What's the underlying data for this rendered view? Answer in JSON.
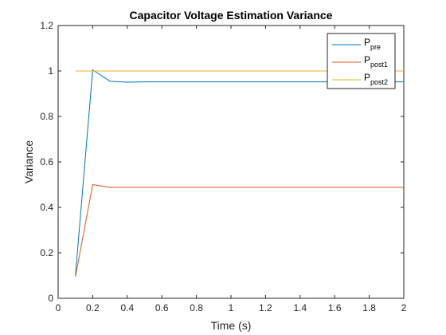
{
  "chart_data": {
    "type": "line",
    "title": "Capacitor Voltage Estimation Variance",
    "xlabel": "Time (s)",
    "ylabel": "Variance",
    "xlim": [
      0,
      2
    ],
    "ylim": [
      0,
      1.2
    ],
    "xticks": [
      0,
      0.2,
      0.4,
      0.6,
      0.8,
      1,
      1.2,
      1.4,
      1.6,
      1.8,
      2
    ],
    "xtick_labels": [
      "0",
      "0.2",
      "0.4",
      "0.6",
      "0.8",
      "1",
      "1.2",
      "1.4",
      "1.6",
      "1.8",
      "2"
    ],
    "yticks": [
      0,
      0.2,
      0.4,
      0.6,
      0.8,
      1,
      1.2
    ],
    "ytick_labels": [
      "0",
      "0.2",
      "0.4",
      "0.6",
      "0.8",
      "1",
      "1.2"
    ],
    "grid": false,
    "legend_position": "top-right",
    "series": [
      {
        "name": "P_pre",
        "legend_main": "P",
        "legend_sub": "pre",
        "color": "#0072BD",
        "x": [
          0.1,
          0.2,
          0.3,
          0.4,
          0.5,
          0.6,
          0.7,
          0.8,
          0.9,
          1.0,
          1.1,
          1.2,
          1.3,
          1.4,
          1.5,
          1.6,
          1.7,
          1.8,
          1.9,
          2.0
        ],
        "y": [
          0.1,
          1.005,
          0.955,
          0.951,
          0.952,
          0.952,
          0.952,
          0.952,
          0.952,
          0.952,
          0.952,
          0.952,
          0.952,
          0.952,
          0.952,
          0.952,
          0.952,
          0.952,
          0.952,
          0.952
        ]
      },
      {
        "name": "P_post1",
        "legend_main": "P",
        "legend_sub": "post1",
        "color": "#D95319",
        "x": [
          0.1,
          0.2,
          0.3,
          0.4,
          0.5,
          0.6,
          0.7,
          0.8,
          0.9,
          1.0,
          1.1,
          1.2,
          1.3,
          1.4,
          1.5,
          1.6,
          1.7,
          1.8,
          1.9,
          2.0
        ],
        "y": [
          0.095,
          0.5,
          0.488,
          0.488,
          0.488,
          0.488,
          0.488,
          0.488,
          0.488,
          0.488,
          0.488,
          0.488,
          0.488,
          0.488,
          0.488,
          0.488,
          0.488,
          0.488,
          0.488,
          0.488
        ]
      },
      {
        "name": "P_post2",
        "legend_main": "P",
        "legend_sub": "post2",
        "color": "#EDB120",
        "x": [
          0.1,
          0.2,
          0.3,
          0.4,
          0.5,
          0.6,
          0.7,
          0.8,
          0.9,
          1.0,
          1.1,
          1.2,
          1.3,
          1.4,
          1.5,
          1.6,
          1.7,
          1.8,
          1.9,
          2.0
        ],
        "y": [
          1.0,
          1.0,
          1.0,
          1.0,
          1.0,
          1.0,
          1.0,
          1.0,
          1.0,
          1.0,
          1.0,
          1.0,
          1.0,
          1.0,
          1.0,
          1.0,
          1.0,
          1.0,
          1.0,
          1.0
        ]
      }
    ]
  }
}
